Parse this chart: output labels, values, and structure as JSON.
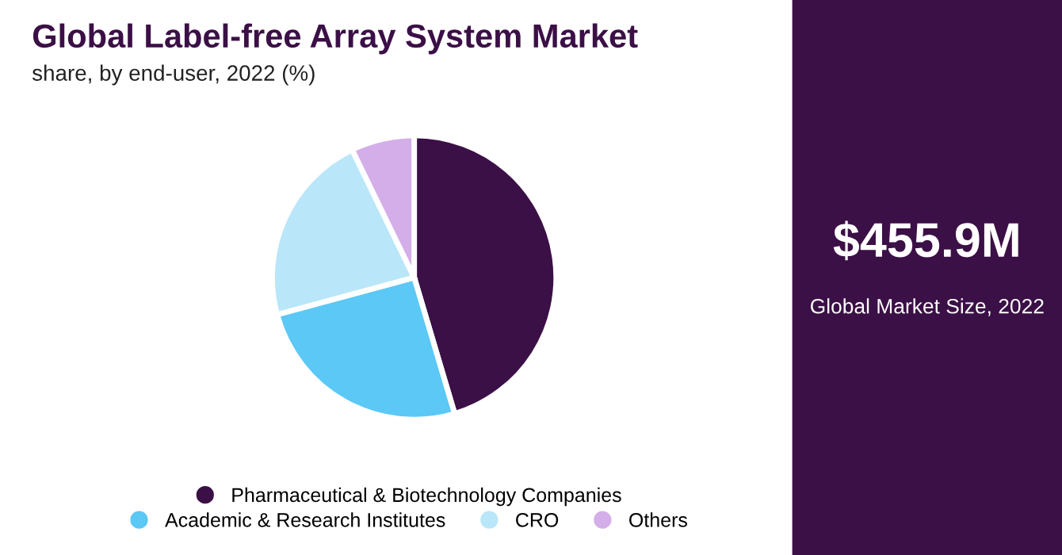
{
  "chart_data": [
    {
      "type": "pie",
      "title": "Global Label-free Array System Market",
      "subtitle": "share, by end-user, 2022 (%)",
      "categories": [
        "Pharmaceutical & Biotechnology Companies",
        "Academic & Research Institutes",
        "CRO",
        "Others"
      ],
      "values": [
        45.4,
        25.4,
        22.0,
        7.2
      ],
      "colors": [
        "#3b1046",
        "#5bc8f5",
        "#b9e6f8",
        "#d4aee8"
      ],
      "legend": "bottom"
    },
    {
      "type": "other",
      "annotations": [
        "$455.9M",
        "Global Market Size, 2022"
      ]
    }
  ]
}
